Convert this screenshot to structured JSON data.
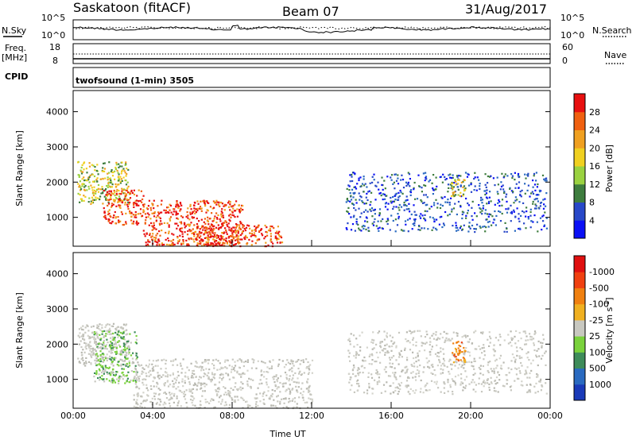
{
  "header": {
    "station": "Saskatoon (fitACF)",
    "beam": "Beam 07",
    "date": "31/Aug/2017"
  },
  "labels": {
    "nsky": "N.Sky",
    "nsky_tick_hi": "10^5",
    "nsky_tick_lo": "10^0",
    "nsearch": "N.Search",
    "nsearch_tick_hi": "10^5",
    "nsearch_tick_lo": "10^0",
    "freq_line1": "Freq.",
    "freq_line2": "[MHz]",
    "freq_tick_hi": "18",
    "freq_tick_lo": "8",
    "nave": "Nave",
    "nave_tick_hi": "60",
    "nave_tick_lo": "0",
    "cpid": "CPID",
    "cpid_text": "twofsound (1-min) 3505"
  },
  "chart_data": [
    {
      "type": "heatmap",
      "panel": "power",
      "xlabel": "",
      "ylabel": "Slant Range [km]",
      "x_ticks": [
        "00:00",
        "04:00",
        "08:00",
        "12:00",
        "16:00",
        "20:00",
        "00:00"
      ],
      "y_ticks": [
        1000,
        2000,
        3000,
        4000
      ],
      "ylim": [
        180,
        4600
      ],
      "colorbar": {
        "label": "Power [dB]",
        "ticks": [
          "4",
          "8",
          "12",
          "16",
          "20",
          "24",
          "28"
        ],
        "colors": [
          "#0a10f5",
          "#2848c8",
          "#3e7d3e",
          "#9ad240",
          "#f0d020",
          "#f0a020",
          "#f06010",
          "#e81010"
        ]
      },
      "echo_regions": [
        {
          "t": [
            0.2,
            2.8
          ],
          "r": [
            1400,
            2600
          ],
          "level": "mid"
        },
        {
          "t": [
            1.5,
            3.5
          ],
          "r": [
            800,
            1800
          ],
          "level": "high"
        },
        {
          "t": [
            3.5,
            8.5
          ],
          "r": [
            200,
            1500
          ],
          "level": "high"
        },
        {
          "t": [
            6.0,
            10.5
          ],
          "r": [
            200,
            800
          ],
          "level": "high"
        },
        {
          "t": [
            13.7,
            23.8
          ],
          "r": [
            600,
            2300
          ],
          "level": "low"
        },
        {
          "t": [
            19.0,
            19.7
          ],
          "r": [
            1600,
            2100
          ],
          "level": "mid"
        }
      ]
    },
    {
      "type": "heatmap",
      "panel": "velocity",
      "xlabel": "Time UT",
      "ylabel": "Slant Range [km]",
      "x_ticks": [
        "00:00",
        "04:00",
        "08:00",
        "12:00",
        "16:00",
        "20:00",
        "00:00"
      ],
      "y_ticks": [
        1000,
        2000,
        3000,
        4000
      ],
      "ylim": [
        180,
        4600
      ],
      "colorbar": {
        "label": "Velocity [m s^-1]",
        "ticks": [
          "1000",
          "500",
          "100",
          "25",
          "-25",
          "-100",
          "-500",
          "-1000"
        ],
        "colors": [
          "#1a3ab8",
          "#2a6ac0",
          "#3e8c5a",
          "#7ad23c",
          "#c8c8c0",
          "#f0b020",
          "#f08010",
          "#f04010",
          "#e01010"
        ]
      },
      "echo_regions": [
        {
          "t": [
            0.2,
            2.8
          ],
          "r": [
            1400,
            2600
          ],
          "level": "ground"
        },
        {
          "t": [
            1.0,
            3.2
          ],
          "r": [
            900,
            2400
          ],
          "level": "pos_low"
        },
        {
          "t": [
            3.0,
            12.0
          ],
          "r": [
            200,
            1600
          ],
          "level": "ground"
        },
        {
          "t": [
            13.8,
            23.8
          ],
          "r": [
            600,
            2400
          ],
          "level": "ground"
        },
        {
          "t": [
            19.0,
            19.7
          ],
          "r": [
            1500,
            2100
          ],
          "level": "neg_mid"
        }
      ]
    }
  ]
}
